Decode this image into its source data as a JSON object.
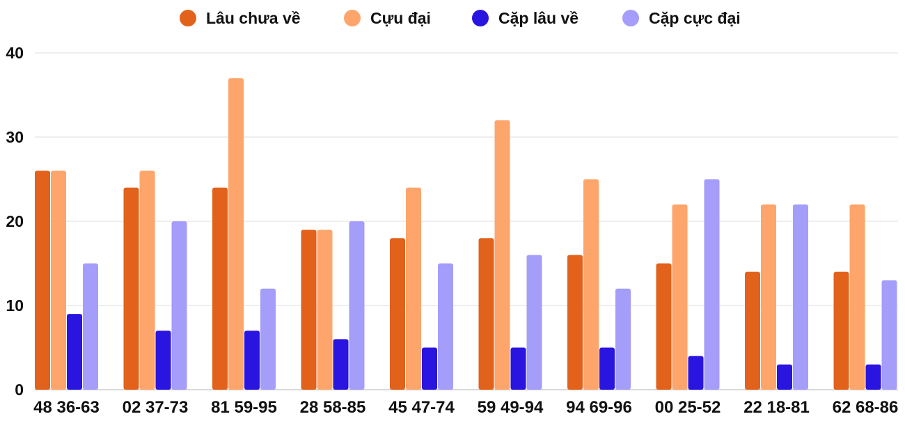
{
  "chart_data": {
    "type": "bar",
    "title": "",
    "xlabel": "",
    "ylabel": "",
    "ylim": [
      0,
      40
    ],
    "yticks": [
      0,
      10,
      20,
      30,
      40
    ],
    "grid": true,
    "legend_position": "top-center",
    "categories": [
      "48 36-63",
      "02 37-73",
      "81 59-95",
      "28 58-85",
      "45 47-74",
      "59 49-94",
      "94 69-96",
      "00 25-52",
      "22 18-81",
      "62 68-86"
    ],
    "series": [
      {
        "name": "Lâu chưa về",
        "color": "#e2621b",
        "values": [
          26,
          24,
          24,
          19,
          18,
          18,
          16,
          15,
          14,
          14
        ]
      },
      {
        "name": "Cựu đại",
        "color": "#fea56b",
        "values": [
          26,
          26,
          37,
          19,
          24,
          32,
          25,
          22,
          22,
          22
        ]
      },
      {
        "name": "Cặp lâu về",
        "color": "#2a14e0",
        "values": [
          9,
          7,
          7,
          6,
          5,
          5,
          5,
          4,
          3,
          3
        ]
      },
      {
        "name": "Cặp cực đại",
        "color": "#a49dfa",
        "values": [
          15,
          20,
          12,
          20,
          15,
          16,
          12,
          25,
          22,
          13
        ]
      }
    ]
  }
}
